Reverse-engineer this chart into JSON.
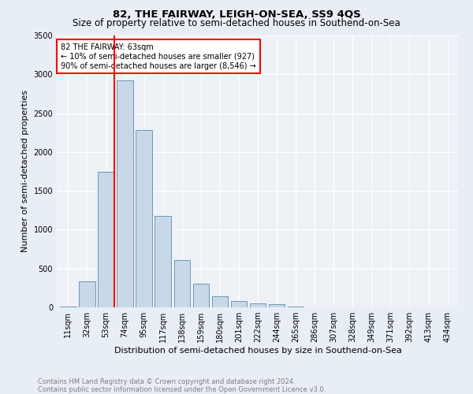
{
  "title": "82, THE FAIRWAY, LEIGH-ON-SEA, SS9 4QS",
  "subtitle": "Size of property relative to semi-detached houses in Southend-on-Sea",
  "xlabel": "Distribution of semi-detached houses by size in Southend-on-Sea",
  "ylabel": "Number of semi-detached properties",
  "footnote1": "Contains HM Land Registry data © Crown copyright and database right 2024.",
  "footnote2": "Contains public sector information licensed under the Open Government Licence v3.0.",
  "bar_labels": [
    "11sqm",
    "32sqm",
    "53sqm",
    "74sqm",
    "95sqm",
    "117sqm",
    "138sqm",
    "159sqm",
    "180sqm",
    "201sqm",
    "222sqm",
    "244sqm",
    "265sqm",
    "286sqm",
    "307sqm",
    "328sqm",
    "349sqm",
    "371sqm",
    "392sqm",
    "413sqm",
    "434sqm"
  ],
  "bar_values": [
    15,
    330,
    1750,
    2920,
    2280,
    1180,
    610,
    305,
    145,
    80,
    55,
    40,
    15,
    0,
    0,
    0,
    0,
    0,
    0,
    0,
    0
  ],
  "bar_color": "#c8d8e8",
  "bar_edge_color": "#5a8ab0",
  "vline_color": "red",
  "annotation_text": "82 THE FAIRWAY: 63sqm\n← 10% of semi-detached houses are smaller (927)\n90% of semi-detached houses are larger (8,546) →",
  "annotation_box_color": "white",
  "annotation_box_edge_color": "red",
  "ylim": [
    0,
    3500
  ],
  "yticks": [
    0,
    500,
    1000,
    1500,
    2000,
    2500,
    3000,
    3500
  ],
  "bg_color": "#e8eef5",
  "plot_bg_color": "#eef2f7",
  "title_fontsize": 9.5,
  "subtitle_fontsize": 8.5,
  "tick_fontsize": 7,
  "ylabel_fontsize": 8,
  "xlabel_fontsize": 8,
  "footnote_fontsize": 6
}
